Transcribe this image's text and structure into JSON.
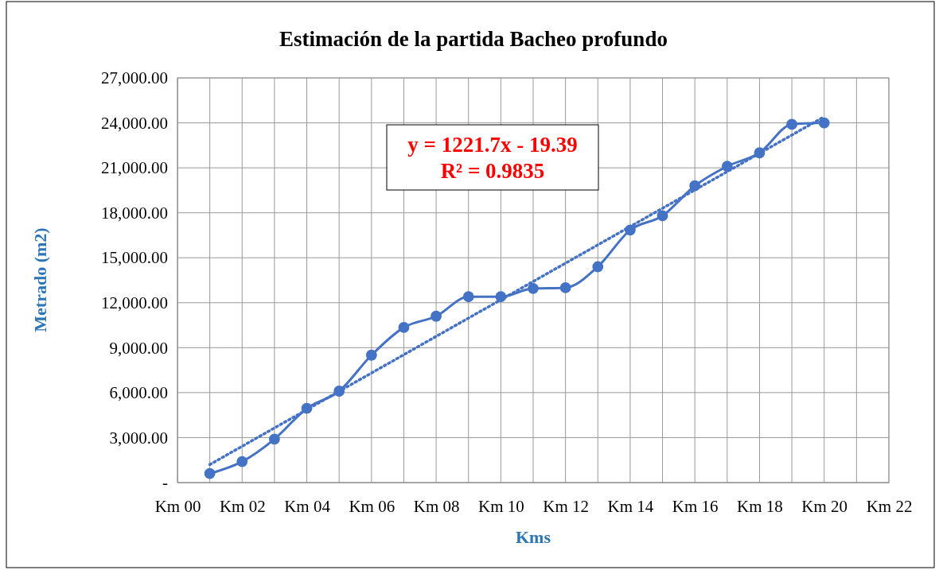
{
  "chart_data": {
    "type": "line",
    "title": "Estimación de la partida Bacheo profundo",
    "xlabel": "Kms",
    "ylabel": "Metrado (m2)",
    "annotations": [
      "y = 1221.7x - 19.39",
      "R² = 0.9835"
    ],
    "categories": [
      "Km 00",
      null,
      "Km 02",
      null,
      "Km 04",
      null,
      "Km 06",
      null,
      "Km 08",
      null,
      "Km 10",
      null,
      "Km 12",
      null,
      "Km 14",
      null,
      "Km 16",
      null,
      "Km 18",
      null,
      "Km 20",
      null,
      "Km 22"
    ],
    "ylim": [
      0,
      27000
    ],
    "yticks": [
      {
        "value": 0,
        "label": "-"
      },
      {
        "value": 3000,
        "label": "3,000.00"
      },
      {
        "value": 6000,
        "label": "6,000.00"
      },
      {
        "value": 9000,
        "label": "9,000.00"
      },
      {
        "value": 12000,
        "label": "12,000.00"
      },
      {
        "value": 15000,
        "label": "15,000.00"
      },
      {
        "value": 18000,
        "label": "18,000.00"
      },
      {
        "value": 21000,
        "label": "21,000.00"
      },
      {
        "value": 24000,
        "label": "24,000.00"
      },
      {
        "value": 27000,
        "label": "27,000.00"
      }
    ],
    "grid": true,
    "series": [
      {
        "color": "#4472c4",
        "marker": "circle",
        "line_style": "solid",
        "values": [
          null,
          600,
          1400,
          2900,
          4950,
          6100,
          8500,
          10350,
          11100,
          12400,
          12400,
          12950,
          13000,
          14400,
          16850,
          17800,
          19800,
          21100,
          22000,
          23900,
          24000,
          null,
          null
        ]
      },
      {
        "color": "#4472c4",
        "marker": "none",
        "line_style": "dotted",
        "values": [
          null,
          1200,
          null,
          null,
          null,
          null,
          null,
          null,
          null,
          null,
          null,
          null,
          null,
          null,
          null,
          null,
          null,
          null,
          null,
          null,
          24410,
          null,
          null
        ]
      }
    ]
  }
}
